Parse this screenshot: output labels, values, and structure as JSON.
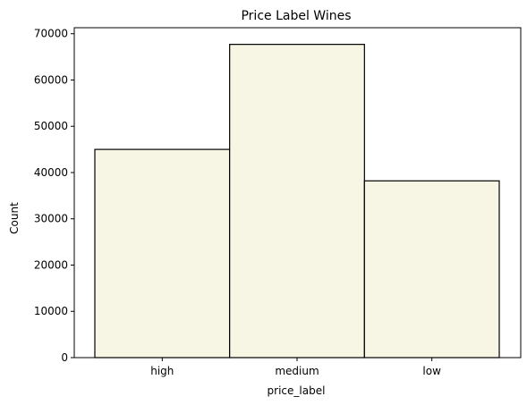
{
  "chart_data": {
    "type": "bar",
    "title": "Price Label Wines",
    "xlabel": "price_label",
    "ylabel": "Count",
    "categories": [
      "high",
      "medium",
      "low"
    ],
    "values": [
      45000,
      67700,
      38200
    ],
    "ylim": [
      0,
      71300
    ],
    "yticks": [
      0,
      10000,
      20000,
      30000,
      40000,
      50000,
      60000,
      70000
    ],
    "ytick_labels": [
      "0",
      "10000",
      "20000",
      "30000",
      "40000",
      "50000",
      "60000",
      "70000"
    ],
    "grid": false,
    "legend": "none",
    "colors": {
      "bar_fill": "#f7f5e3",
      "bar_edge": "#000000",
      "axis": "#000000",
      "background": "#ffffff"
    }
  }
}
